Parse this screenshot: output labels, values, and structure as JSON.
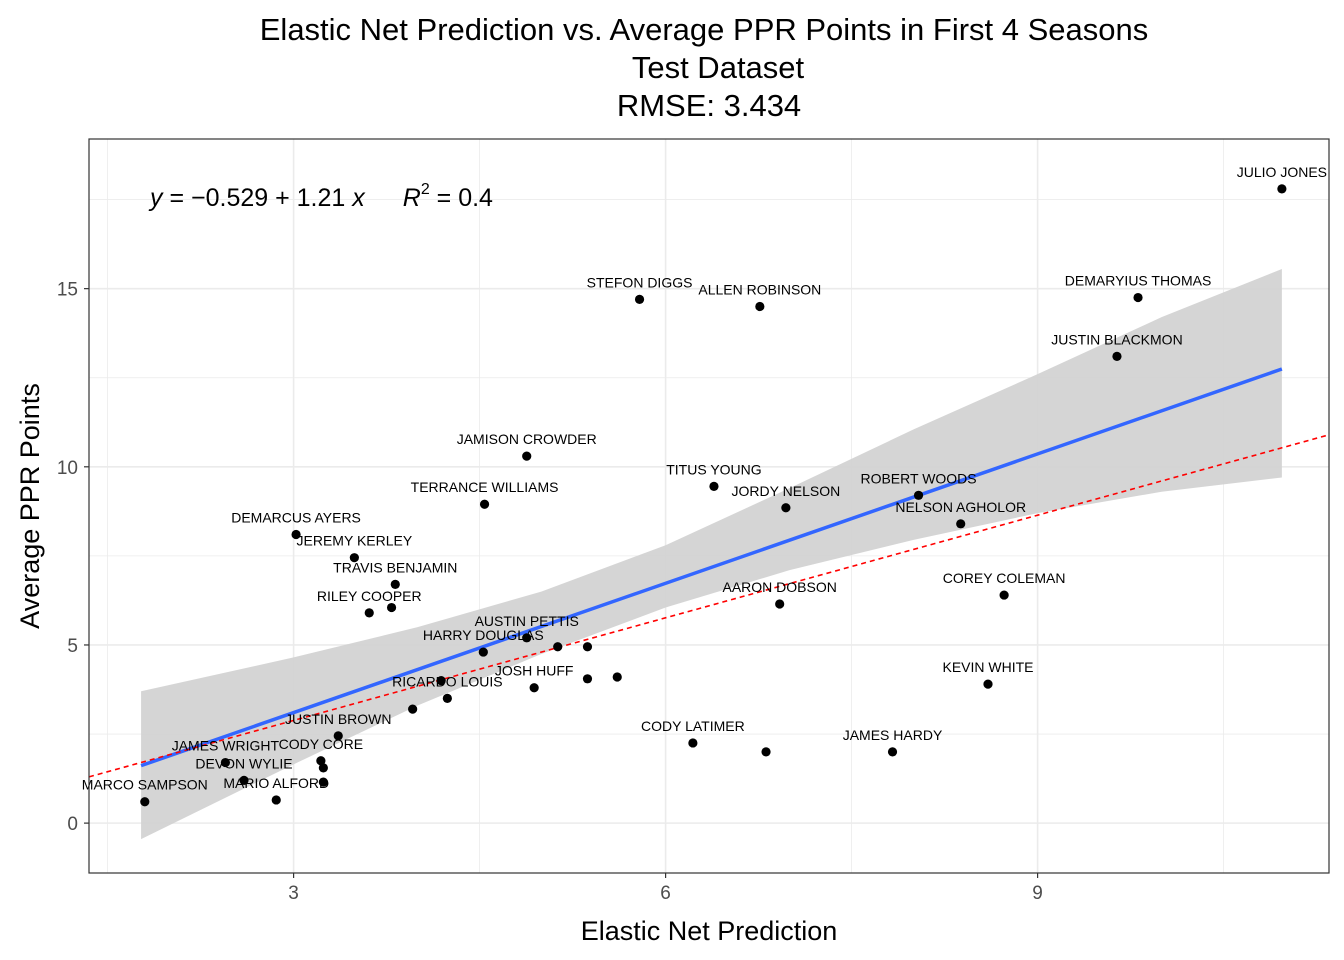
{
  "colors": {
    "points": "#000000",
    "fit_line": "#3366ff",
    "ribbon": "#d3d3d3",
    "reference_line": "#ff0000",
    "grid": "#ebebeb",
    "panel_border": "#333333"
  },
  "chart_data": {
    "type": "scatter",
    "title": [
      "Elastic Net Prediction vs. Average PPR Points in First 4 Seasons",
      "Test Dataset",
      "RMSE: 3.434"
    ],
    "xlabel": "Elastic Net Prediction",
    "ylabel": "Average PPR Points",
    "xlim": [
      1.35,
      11.35
    ],
    "ylim": [
      -1.4,
      19.2
    ],
    "xticks": [
      3,
      6,
      9
    ],
    "yticks": [
      0,
      5,
      10,
      15
    ],
    "grid": true,
    "equation": {
      "prefix": "y",
      "body": " = −0.529 + 1.21 ",
      "var": "x",
      "r2_symbol": "R",
      "r2_exp": "2",
      "r2_value": " = 0.4"
    },
    "fit_line": {
      "intercept": -0.529,
      "slope": 1.21,
      "x_range": [
        1.77,
        10.97
      ]
    },
    "confidence_band": [
      {
        "x": 1.77,
        "low": -0.45,
        "high": 3.7
      },
      {
        "x": 3.0,
        "low": 1.65,
        "high": 4.65
      },
      {
        "x": 4.0,
        "low": 3.3,
        "high": 5.5
      },
      {
        "x": 5.0,
        "low": 4.75,
        "high": 6.5
      },
      {
        "x": 6.0,
        "low": 6.05,
        "high": 7.8
      },
      {
        "x": 7.0,
        "low": 7.1,
        "high": 9.4
      },
      {
        "x": 8.0,
        "low": 7.95,
        "high": 11.05
      },
      {
        "x": 9.0,
        "low": 8.7,
        "high": 12.6
      },
      {
        "x": 10.0,
        "low": 9.3,
        "high": 14.2
      },
      {
        "x": 10.97,
        "low": 9.7,
        "high": 15.55
      }
    ],
    "reference_line": {
      "intercept": 0.002,
      "slope": 0.96
    },
    "points": [
      {
        "label": "JULIO JONES",
        "x": 10.97,
        "y": 17.8
      },
      {
        "label": "DEMARYIUS THOMAS",
        "x": 9.81,
        "y": 14.75
      },
      {
        "label": "JUSTIN BLACKMON",
        "x": 9.64,
        "y": 13.1
      },
      {
        "label": "STEFON DIGGS",
        "x": 5.79,
        "y": 14.7
      },
      {
        "label": "ALLEN ROBINSON",
        "x": 6.76,
        "y": 14.5
      },
      {
        "label": "JAMISON CROWDER",
        "x": 4.88,
        "y": 10.3
      },
      {
        "label": "TITUS YOUNG",
        "x": 6.39,
        "y": 9.45
      },
      {
        "label": "TERRANCE WILLIAMS",
        "x": 4.54,
        "y": 8.95
      },
      {
        "label": "JORDY NELSON",
        "x": 6.97,
        "y": 8.85
      },
      {
        "label": "ROBERT WOODS",
        "x": 8.04,
        "y": 9.2
      },
      {
        "label": "NELSON AGHOLOR",
        "x": 8.38,
        "y": 8.4
      },
      {
        "label": "DEMARCUS AYERS",
        "x": 3.02,
        "y": 8.1
      },
      {
        "label": "JEREMY KERLEY",
        "x": 3.49,
        "y": 7.45
      },
      {
        "label": "TRAVIS BENJAMIN",
        "x": 3.82,
        "y": 6.7
      },
      {
        "label": "RILEY COOPER",
        "x": 3.61,
        "y": 5.9
      },
      {
        "label": "",
        "x": 3.79,
        "y": 6.05
      },
      {
        "label": "AARON DOBSON",
        "x": 6.92,
        "y": 6.15
      },
      {
        "label": "COREY COLEMAN",
        "x": 8.73,
        "y": 6.4
      },
      {
        "label": "AUSTIN PETTIS",
        "x": 4.88,
        "y": 5.2
      },
      {
        "label": "",
        "x": 5.13,
        "y": 4.95
      },
      {
        "label": "",
        "x": 5.37,
        "y": 4.95
      },
      {
        "label": "HARRY DOUGLAS",
        "x": 4.53,
        "y": 4.8
      },
      {
        "label": "JOSH HUFF",
        "x": 4.94,
        "y": 3.8
      },
      {
        "label": "",
        "x": 5.37,
        "y": 4.05
      },
      {
        "label": "",
        "x": 5.61,
        "y": 4.1
      },
      {
        "label": "",
        "x": 4.19,
        "y": 4.0
      },
      {
        "label": "RICARDO LOUIS",
        "x": 4.24,
        "y": 3.5
      },
      {
        "label": "",
        "x": 3.96,
        "y": 3.2
      },
      {
        "label": "KEVIN WHITE",
        "x": 8.6,
        "y": 3.9
      },
      {
        "label": "JUSTIN BROWN",
        "x": 3.36,
        "y": 2.45
      },
      {
        "label": "CODY LATIMER",
        "x": 6.22,
        "y": 2.25
      },
      {
        "label": "",
        "x": 6.81,
        "y": 2.0
      },
      {
        "label": "JAMES HARDY",
        "x": 7.83,
        "y": 2.0
      },
      {
        "label": "CODY CORE",
        "x": 3.22,
        "y": 1.75
      },
      {
        "label": "",
        "x": 3.24,
        "y": 1.55
      },
      {
        "label": "JAMES WRIGHT",
        "x": 2.45,
        "y": 1.7
      },
      {
        "label": "DEVON WYLIE",
        "x": 2.6,
        "y": 1.2
      },
      {
        "label": "",
        "x": 3.24,
        "y": 1.15
      },
      {
        "label": "MARIO ALFORD",
        "x": 2.86,
        "y": 0.65
      },
      {
        "label": "MARCO SAMPSON",
        "x": 1.8,
        "y": 0.6
      }
    ]
  }
}
